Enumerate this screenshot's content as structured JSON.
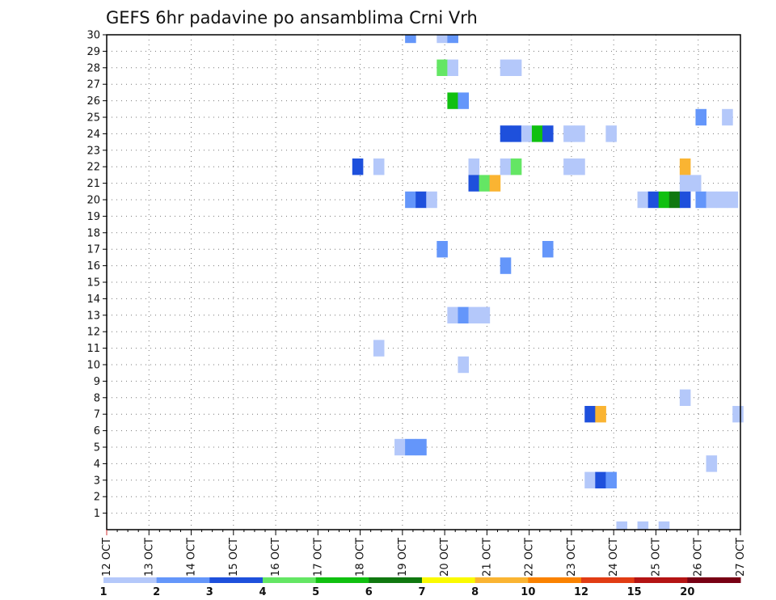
{
  "chart_data": {
    "type": "heatmap",
    "title": "GEFS 6hr padavine po ansamblima Crni Vrh",
    "xlabel": "",
    "ylabel": "",
    "x_tick_labels": [
      "12 OCT",
      "13 OCT",
      "14 OCT",
      "15 OCT",
      "16 OCT",
      "17 OCT",
      "18 OCT",
      "19 OCT",
      "20 OCT",
      "21 OCT",
      "22 OCT",
      "23 OCT",
      "24 OCT",
      "25 OCT",
      "26 OCT",
      "27 OCT"
    ],
    "y_tick_labels": [
      "1",
      "2",
      "3",
      "4",
      "5",
      "6",
      "7",
      "8",
      "9",
      "10",
      "11",
      "12",
      "13",
      "14",
      "15",
      "16",
      "17",
      "18",
      "19",
      "20",
      "21",
      "22",
      "23",
      "24",
      "25",
      "26",
      "27",
      "28",
      "29",
      "30"
    ],
    "xlim": [
      0,
      60
    ],
    "ylim": [
      0,
      30
    ],
    "x_unit_note": "6-hour steps since 12 OCT 00Z",
    "grid": true,
    "colorbar": {
      "levels": [
        "1",
        "2",
        "3",
        "4",
        "5",
        "6",
        "7",
        "8",
        "10",
        "12",
        "15",
        "20"
      ],
      "colors": [
        "#b4c8fa",
        "#6496fa",
        "#1e50dc",
        "#64e664",
        "#10c010",
        "#107810",
        "#fafa00",
        "#fab432",
        "#fa8200",
        "#e13c14",
        "#b41414",
        "#780014"
      ]
    },
    "cells": [
      {
        "x": 28.75,
        "y": 30,
        "v": 2
      },
      {
        "x": 31.75,
        "y": 30,
        "v": 1
      },
      {
        "x": 32.75,
        "y": 30,
        "v": 2
      },
      {
        "x": 31.75,
        "y": 28,
        "v": 4
      },
      {
        "x": 32.75,
        "y": 28,
        "v": 1
      },
      {
        "x": 37.75,
        "y": 28,
        "v": 1
      },
      {
        "x": 38.75,
        "y": 28,
        "v": 1
      },
      {
        "x": 32.75,
        "y": 26,
        "v": 5
      },
      {
        "x": 33.75,
        "y": 26,
        "v": 2
      },
      {
        "x": 56.25,
        "y": 25,
        "v": 2
      },
      {
        "x": 58.75,
        "y": 25,
        "v": 1
      },
      {
        "x": 37.75,
        "y": 24,
        "v": 3
      },
      {
        "x": 38.75,
        "y": 24,
        "v": 3
      },
      {
        "x": 39.75,
        "y": 24,
        "v": 1
      },
      {
        "x": 40.75,
        "y": 24,
        "v": 5
      },
      {
        "x": 41.75,
        "y": 24,
        "v": 3
      },
      {
        "x": 43.75,
        "y": 24,
        "v": 1
      },
      {
        "x": 44.75,
        "y": 24,
        "v": 1
      },
      {
        "x": 47.75,
        "y": 24,
        "v": 1
      },
      {
        "x": 23.75,
        "y": 22,
        "v": 3
      },
      {
        "x": 25.75,
        "y": 22,
        "v": 1
      },
      {
        "x": 34.75,
        "y": 22,
        "v": 1
      },
      {
        "x": 37.75,
        "y": 22,
        "v": 1
      },
      {
        "x": 38.75,
        "y": 22,
        "v": 4
      },
      {
        "x": 43.75,
        "y": 22,
        "v": 1
      },
      {
        "x": 44.75,
        "y": 22,
        "v": 1
      },
      {
        "x": 54.75,
        "y": 22,
        "v": 8
      },
      {
        "x": 34.75,
        "y": 21,
        "v": 3
      },
      {
        "x": 35.75,
        "y": 21,
        "v": 4
      },
      {
        "x": 36.75,
        "y": 21,
        "v": 8
      },
      {
        "x": 54.75,
        "y": 21,
        "v": 1
      },
      {
        "x": 55.75,
        "y": 21,
        "v": 1
      },
      {
        "x": 28.75,
        "y": 20,
        "v": 2
      },
      {
        "x": 29.75,
        "y": 20,
        "v": 3
      },
      {
        "x": 30.75,
        "y": 20,
        "v": 1
      },
      {
        "x": 50.75,
        "y": 20,
        "v": 1
      },
      {
        "x": 51.75,
        "y": 20,
        "v": 3
      },
      {
        "x": 52.75,
        "y": 20,
        "v": 5
      },
      {
        "x": 53.75,
        "y": 20,
        "v": 6
      },
      {
        "x": 54.75,
        "y": 20,
        "v": 3
      },
      {
        "x": 56.25,
        "y": 20,
        "v": 2
      },
      {
        "x": 57.25,
        "y": 20,
        "v": 1
      },
      {
        "x": 58.25,
        "y": 20,
        "v": 1
      },
      {
        "x": 59.25,
        "y": 20,
        "v": 1
      },
      {
        "x": 31.75,
        "y": 17,
        "v": 2
      },
      {
        "x": 41.75,
        "y": 17,
        "v": 2
      },
      {
        "x": 37.75,
        "y": 16,
        "v": 2
      },
      {
        "x": 32.75,
        "y": 13,
        "v": 1
      },
      {
        "x": 33.75,
        "y": 13,
        "v": 2
      },
      {
        "x": 34.75,
        "y": 13,
        "v": 1
      },
      {
        "x": 35.75,
        "y": 13,
        "v": 1
      },
      {
        "x": 25.75,
        "y": 11,
        "v": 1
      },
      {
        "x": 33.75,
        "y": 10,
        "v": 1
      },
      {
        "x": 54.75,
        "y": 8,
        "v": 1
      },
      {
        "x": 45.75,
        "y": 7,
        "v": 3
      },
      {
        "x": 46.75,
        "y": 7,
        "v": 8
      },
      {
        "x": 59.75,
        "y": 7,
        "v": 1
      },
      {
        "x": 27.75,
        "y": 5,
        "v": 1
      },
      {
        "x": 28.75,
        "y": 5,
        "v": 2
      },
      {
        "x": 29.75,
        "y": 5,
        "v": 2
      },
      {
        "x": 57.25,
        "y": 4,
        "v": 1
      },
      {
        "x": 45.75,
        "y": 3,
        "v": 1
      },
      {
        "x": 46.75,
        "y": 3,
        "v": 3
      },
      {
        "x": 47.75,
        "y": 3,
        "v": 2
      },
      {
        "x": 48.75,
        "y": 0,
        "v": 1
      },
      {
        "x": 50.75,
        "y": 0,
        "v": 1
      },
      {
        "x": 52.75,
        "y": 0,
        "v": 1
      }
    ]
  }
}
